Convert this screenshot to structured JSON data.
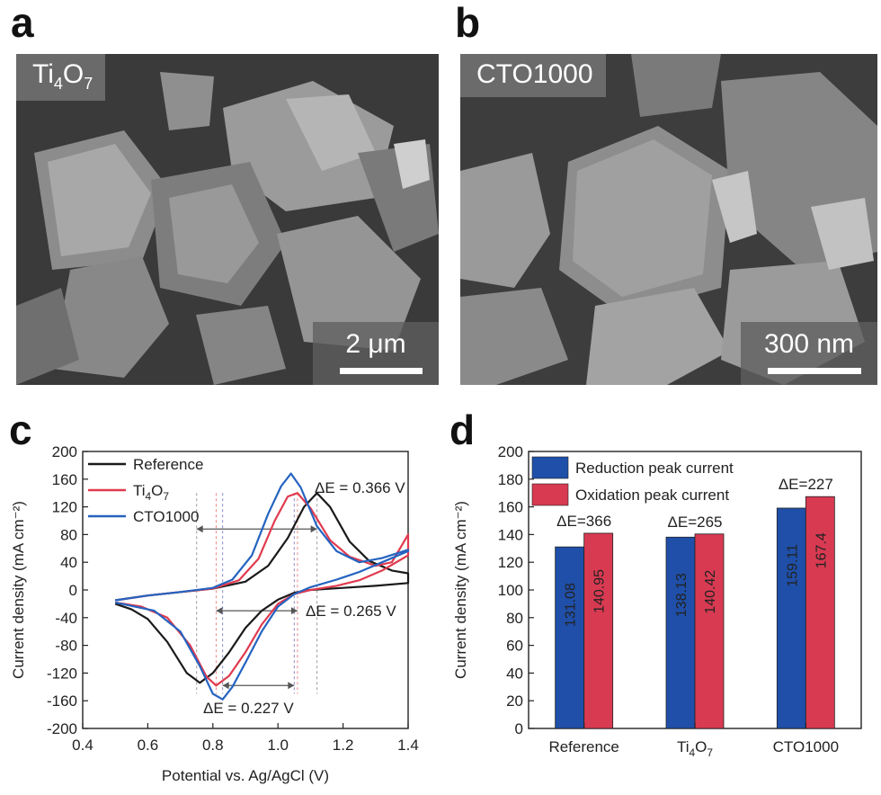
{
  "panels": {
    "a": {
      "letter": "a",
      "label_main": "Ti",
      "label_sub1": "4",
      "label_mid": "O",
      "label_sub2": "7",
      "scale": "2 μm"
    },
    "b": {
      "letter": "b",
      "label": "CTO1000",
      "scale": "300 nm"
    },
    "c": {
      "letter": "c"
    },
    "d": {
      "letter": "d"
    }
  },
  "chart_data": [
    {
      "type": "line",
      "xlabel": "Potential vs. Ag/AgCl (V)",
      "ylabel": "Current density (mA cm⁻²)",
      "xlim": [
        0.4,
        1.4
      ],
      "ylim": [
        -200,
        200
      ],
      "xticks": [
        "0.4",
        "0.6",
        "0.8",
        "1.0",
        "1.2",
        "1.4"
      ],
      "yticks": [
        "200",
        "160",
        "120",
        "80",
        "40",
        "0",
        "-40",
        "-80",
        "-120",
        "-160",
        "-200"
      ],
      "legend_position": "top-left",
      "series": [
        {
          "name": "Reference",
          "color": "#1a1a1a",
          "forward": [
            [
              0.5,
              -15
            ],
            [
              0.6,
              -8
            ],
            [
              0.7,
              -3
            ],
            [
              0.8,
              2
            ],
            [
              0.9,
              12
            ],
            [
              0.97,
              35
            ],
            [
              1.03,
              75
            ],
            [
              1.08,
              120
            ],
            [
              1.12,
              140
            ],
            [
              1.16,
              120
            ],
            [
              1.22,
              70
            ],
            [
              1.28,
              42
            ],
            [
              1.35,
              28
            ],
            [
              1.4,
              24
            ]
          ],
          "reverse": [
            [
              1.4,
              10
            ],
            [
              1.3,
              6
            ],
            [
              1.2,
              3
            ],
            [
              1.1,
              0
            ],
            [
              1.05,
              -4
            ],
            [
              1.0,
              -14
            ],
            [
              0.95,
              -30
            ],
            [
              0.9,
              -55
            ],
            [
              0.85,
              -90
            ],
            [
              0.8,
              -120
            ],
            [
              0.76,
              -134
            ],
            [
              0.72,
              -120
            ],
            [
              0.66,
              -75
            ],
            [
              0.6,
              -42
            ],
            [
              0.55,
              -28
            ],
            [
              0.5,
              -20
            ]
          ]
        },
        {
          "name": "Ti4O7",
          "color": "#e03a4e",
          "forward": [
            [
              0.5,
              -15
            ],
            [
              0.6,
              -8
            ],
            [
              0.7,
              -3
            ],
            [
              0.8,
              2
            ],
            [
              0.88,
              14
            ],
            [
              0.94,
              45
            ],
            [
              0.99,
              100
            ],
            [
              1.03,
              135
            ],
            [
              1.06,
              140
            ],
            [
              1.1,
              118
            ],
            [
              1.16,
              72
            ],
            [
              1.22,
              48
            ],
            [
              1.3,
              35
            ],
            [
              1.35,
              40
            ],
            [
              1.4,
              80
            ]
          ],
          "reverse": [
            [
              1.4,
              50
            ],
            [
              1.32,
              28
            ],
            [
              1.25,
              14
            ],
            [
              1.18,
              6
            ],
            [
              1.1,
              0
            ],
            [
              1.05,
              -6
            ],
            [
              1.0,
              -20
            ],
            [
              0.95,
              -50
            ],
            [
              0.9,
              -90
            ],
            [
              0.85,
              -124
            ],
            [
              0.81,
              -138
            ],
            [
              0.78,
              -125
            ],
            [
              0.73,
              -80
            ],
            [
              0.66,
              -40
            ],
            [
              0.58,
              -24
            ],
            [
              0.5,
              -18
            ]
          ]
        },
        {
          "name": "CTO1000",
          "color": "#2563c0",
          "forward": [
            [
              0.5,
              -15
            ],
            [
              0.6,
              -8
            ],
            [
              0.7,
              -3
            ],
            [
              0.8,
              3
            ],
            [
              0.86,
              15
            ],
            [
              0.92,
              50
            ],
            [
              0.97,
              110
            ],
            [
              1.01,
              150
            ],
            [
              1.04,
              168
            ],
            [
              1.07,
              148
            ],
            [
              1.12,
              92
            ],
            [
              1.18,
              56
            ],
            [
              1.25,
              40
            ],
            [
              1.32,
              46
            ],
            [
              1.4,
              58
            ]
          ],
          "reverse": [
            [
              1.4,
              56
            ],
            [
              1.32,
              40
            ],
            [
              1.25,
              26
            ],
            [
              1.18,
              15
            ],
            [
              1.1,
              4
            ],
            [
              1.05,
              -6
            ],
            [
              1.0,
              -24
            ],
            [
              0.95,
              -60
            ],
            [
              0.9,
              -105
            ],
            [
              0.86,
              -140
            ],
            [
              0.83,
              -158
            ],
            [
              0.8,
              -150
            ],
            [
              0.76,
              -110
            ],
            [
              0.7,
              -60
            ],
            [
              0.62,
              -30
            ],
            [
              0.5,
              -18
            ]
          ]
        }
      ],
      "annotations": [
        "ΔE = 0.366 V",
        "ΔE = 0.265 V",
        "ΔE = 0.227 V"
      ]
    },
    {
      "type": "bar",
      "ylabel": "Current density (mA cm⁻²)",
      "ylim": [
        0,
        200
      ],
      "yticks": [
        "0",
        "20",
        "40",
        "60",
        "80",
        "100",
        "120",
        "140",
        "160",
        "180",
        "200"
      ],
      "categories": [
        "Reference",
        "Ti4O7",
        "CTO1000"
      ],
      "series": [
        {
          "name": "Reduction peak current",
          "color": "#1f4fa8",
          "values": [
            131.08,
            138.13,
            159.11
          ],
          "labels": [
            "131.08",
            "138.13",
            "159.11"
          ]
        },
        {
          "name": "Oxidation peak current",
          "color": "#d83a52",
          "values": [
            140.95,
            140.42,
            167.4
          ],
          "labels": [
            "140.95",
            "140.42",
            "167.4"
          ]
        }
      ],
      "delta_labels": [
        "ΔE=366",
        "ΔE=265",
        "ΔE=227"
      ],
      "legend_position": "top-left"
    }
  ]
}
